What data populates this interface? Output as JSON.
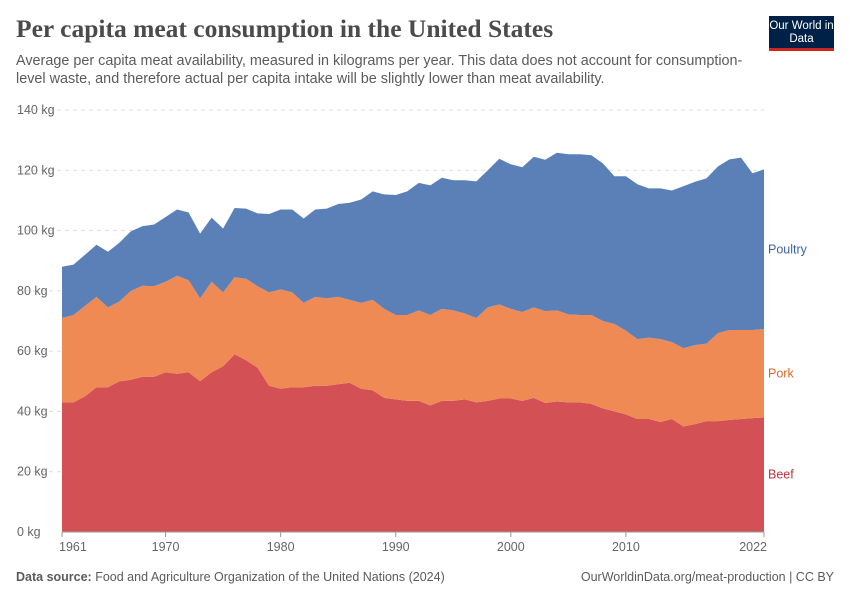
{
  "header": {
    "title": "Per capita meat consumption in the United States",
    "subtitle": "Average per capita meat availability, measured in kilograms per year. This data does not account for consumption-level waste, and therefore actual per capita intake will be slightly lower than meat availability.",
    "logo": "Our World in Data"
  },
  "footer": {
    "source_label": "Data source:",
    "source": "Food and Agriculture Organization of the United Nations (2024)",
    "credit": "OurWorldinData.org/meat-production | CC BY"
  },
  "chart_data": {
    "type": "area",
    "stacked": true,
    "title": "Per capita meat consumption in the United States",
    "xlabel": "",
    "ylabel": "",
    "ylim": [
      0,
      140
    ],
    "xlim": [
      1961,
      2022
    ],
    "grid": true,
    "legend": "right (inline labels)",
    "y_ticks": [
      "0 kg",
      "20 kg",
      "40 kg",
      "60 kg",
      "80 kg",
      "100 kg",
      "120 kg",
      "140 kg"
    ],
    "y_tick_values": [
      0,
      20,
      40,
      60,
      80,
      100,
      120,
      140
    ],
    "x_ticks": [
      "1961",
      "1970",
      "1980",
      "1990",
      "2000",
      "2010",
      "2022"
    ],
    "x_tick_values": [
      1961,
      1970,
      1980,
      1990,
      2000,
      2010,
      2022
    ],
    "x": [
      1961,
      1962,
      1963,
      1964,
      1965,
      1966,
      1967,
      1968,
      1969,
      1970,
      1971,
      1972,
      1973,
      1974,
      1975,
      1976,
      1977,
      1978,
      1979,
      1980,
      1981,
      1982,
      1983,
      1984,
      1985,
      1986,
      1987,
      1988,
      1989,
      1990,
      1991,
      1992,
      1993,
      1994,
      1995,
      1996,
      1997,
      1998,
      1999,
      2000,
      2001,
      2002,
      2003,
      2004,
      2005,
      2006,
      2007,
      2008,
      2009,
      2010,
      2011,
      2012,
      2013,
      2014,
      2015,
      2016,
      2017,
      2018,
      2019,
      2020,
      2021,
      2022
    ],
    "series": [
      {
        "name": "Beef",
        "color": "#d35155",
        "values": [
          43,
          43,
          45,
          48,
          48,
          50,
          50.5,
          51.5,
          51.5,
          53,
          52.5,
          53,
          50,
          53,
          55,
          59,
          57,
          54.5,
          48.5,
          47.5,
          48,
          48,
          48.5,
          48.5,
          49,
          49.5,
          47.5,
          47,
          44.5,
          44,
          43.5,
          43.5,
          42,
          43.5,
          43.5,
          44,
          43,
          43.5,
          44.3,
          44.3,
          43.5,
          44.5,
          42.8,
          43.3,
          43,
          43,
          42.5,
          41,
          40,
          39,
          37.5,
          37.5,
          36.5,
          37.5,
          35,
          35.8,
          36.8,
          36.8,
          37.2,
          37.5,
          37.8,
          38
        ]
      },
      {
        "name": "Pork",
        "color": "#ef8a55",
        "values": [
          28,
          29,
          30,
          30,
          26.5,
          26.5,
          29.5,
          30.2,
          30,
          30,
          32.5,
          30.5,
          27.5,
          30,
          24.5,
          25.5,
          27,
          27,
          31,
          33,
          31.5,
          28,
          29.5,
          29,
          29,
          27.5,
          28.5,
          30,
          29.5,
          28,
          28.5,
          30,
          30,
          30.5,
          30,
          28.5,
          28,
          31,
          31.2,
          29.7,
          29.5,
          30,
          30.5,
          30.2,
          29.2,
          29,
          29.5,
          29,
          29,
          27.8,
          26.5,
          27,
          27.5,
          25.5,
          26,
          26.2,
          25.7,
          29.2,
          29.8,
          29.5,
          29.2,
          29.3
        ]
      },
      {
        "name": "Poultry",
        "color": "#5b80b8",
        "values": [
          17,
          16.7,
          17,
          17.3,
          18.5,
          19.5,
          19.8,
          19.8,
          20.5,
          21.5,
          22,
          22.5,
          21.5,
          21.3,
          21.2,
          23,
          23.3,
          24.2,
          26,
          26.5,
          27.5,
          28,
          29,
          29.8,
          30.8,
          32.2,
          34.3,
          36,
          38,
          39.8,
          41,
          42.3,
          43,
          43.5,
          43.2,
          44.2,
          45.3,
          45.5,
          48.3,
          48,
          48,
          50,
          50.2,
          52.3,
          53.1,
          53.3,
          53,
          52.3,
          49,
          51.2,
          51.4,
          49.5,
          50,
          50.3,
          53.7,
          54.2,
          54.8,
          55.3,
          56.6,
          57.2,
          52,
          53
        ]
      }
    ],
    "label_colors": {
      "Beef": "#c5323a",
      "Pork": "#d9692f",
      "Poultry": "#3b64a8"
    }
  }
}
